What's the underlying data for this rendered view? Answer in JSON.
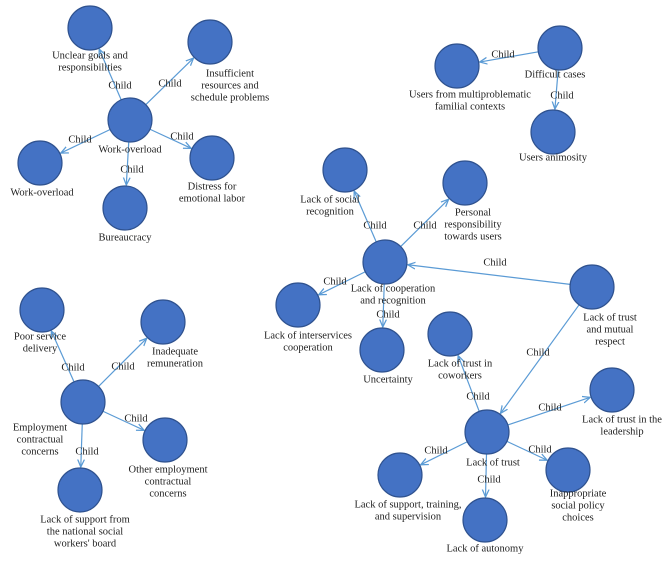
{
  "nodes": [
    {
      "label": [
        "Work-overload"
      ]
    },
    {
      "label": [
        "Unclear goals and",
        "responsibilities"
      ]
    },
    {
      "label": [
        "Insufficient",
        "resources and",
        "schedule problems"
      ]
    },
    {
      "label": [
        "Work-overload"
      ]
    },
    {
      "label": [
        "Bureaucracy"
      ]
    },
    {
      "label": [
        "Distress for",
        "emotional labor"
      ]
    },
    {
      "label": [
        "Difficult cases"
      ]
    },
    {
      "label": [
        "Users from multiproblematic",
        "familial contexts"
      ]
    },
    {
      "label": [
        "Users animosity"
      ]
    },
    {
      "label": [
        "Lack of cooperation",
        "and recognition"
      ]
    },
    {
      "label": [
        "Lack of social",
        "recognition"
      ]
    },
    {
      "label": [
        "Personal",
        "responsibility",
        "towards users"
      ]
    },
    {
      "label": [
        "Lack of interservices",
        "cooperation"
      ]
    },
    {
      "label": [
        "Uncertainty"
      ]
    },
    {
      "label": [
        "Lack of trust",
        "and mutual",
        "respect"
      ]
    },
    {
      "label": [
        "Lack of trust"
      ]
    },
    {
      "label": [
        "Lack of trust in",
        "coworkers"
      ]
    },
    {
      "label": [
        "Lack of trust in the",
        "leadership"
      ]
    },
    {
      "label": [
        "Lack of support, training,",
        "and supervision"
      ]
    },
    {
      "label": [
        "Lack of autonomy"
      ]
    },
    {
      "label": [
        "Inappropriate",
        "social policy",
        "choices"
      ]
    },
    {
      "label": [
        "Employment",
        "contractual",
        "concerns"
      ]
    },
    {
      "label": [
        "Poor service",
        "delivery"
      ]
    },
    {
      "label": [
        "Inadequate",
        "remuneration"
      ]
    },
    {
      "label": [
        "Other employment",
        "contractual",
        "concerns"
      ]
    },
    {
      "label": [
        "Lack of support from",
        "the national social",
        "workers' board"
      ]
    }
  ],
  "edges": [
    {
      "label": "Child"
    },
    {
      "label": "Child"
    },
    {
      "label": "Child"
    },
    {
      "label": "Child"
    },
    {
      "label": "Child"
    },
    {
      "label": "Child"
    },
    {
      "label": "Child"
    },
    {
      "label": "Child"
    },
    {
      "label": "Child"
    },
    {
      "label": "Child"
    },
    {
      "label": "Child"
    },
    {
      "label": "Child"
    },
    {
      "label": "Child"
    },
    {
      "label": "Child"
    },
    {
      "label": "Child"
    },
    {
      "label": "Child"
    },
    {
      "label": "Child"
    },
    {
      "label": "Child"
    },
    {
      "label": "Child"
    },
    {
      "label": "Child"
    },
    {
      "label": "Child"
    },
    {
      "label": "Child"
    }
  ]
}
